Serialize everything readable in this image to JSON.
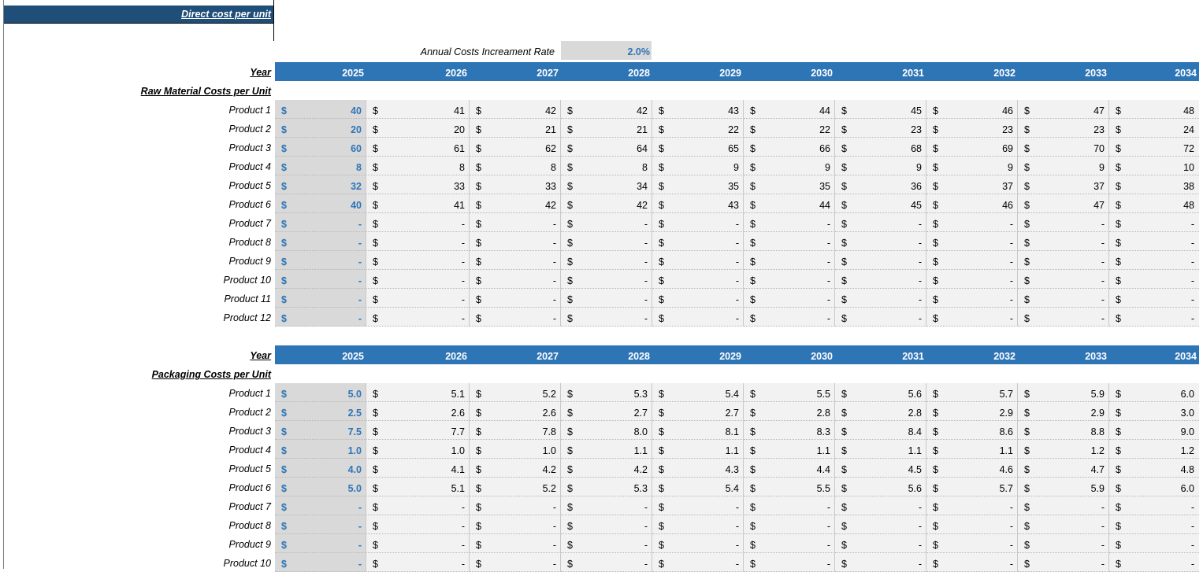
{
  "sheet": {
    "title": "Direct cost per unit",
    "rate_label": "Annual Costs Increament Rate",
    "rate_value": "2.0%"
  },
  "sections": [
    {
      "year_label": "Year",
      "section_title": "Raw Material Costs per Unit",
      "years": [
        "2025",
        "2026",
        "2027",
        "2028",
        "2029",
        "2030",
        "2031",
        "2032",
        "2033",
        "2034"
      ],
      "rows": [
        {
          "label": "Product 1",
          "values": [
            "40",
            "41",
            "42",
            "42",
            "43",
            "44",
            "45",
            "46",
            "47",
            "48"
          ]
        },
        {
          "label": "Product 2",
          "values": [
            "20",
            "20",
            "21",
            "21",
            "22",
            "22",
            "23",
            "23",
            "23",
            "24"
          ]
        },
        {
          "label": "Product 3",
          "values": [
            "60",
            "61",
            "62",
            "64",
            "65",
            "66",
            "68",
            "69",
            "70",
            "72"
          ]
        },
        {
          "label": "Product 4",
          "values": [
            "8",
            "8",
            "8",
            "8",
            "9",
            "9",
            "9",
            "9",
            "9",
            "10"
          ]
        },
        {
          "label": "Product 5",
          "values": [
            "32",
            "33",
            "33",
            "34",
            "35",
            "35",
            "36",
            "37",
            "37",
            "38"
          ]
        },
        {
          "label": "Product 6",
          "values": [
            "40",
            "41",
            "42",
            "42",
            "43",
            "44",
            "45",
            "46",
            "47",
            "48"
          ]
        },
        {
          "label": "Product 7",
          "values": [
            "-",
            "-",
            "-",
            "-",
            "-",
            "-",
            "-",
            "-",
            "-",
            "-"
          ]
        },
        {
          "label": "Product 8",
          "values": [
            "-",
            "-",
            "-",
            "-",
            "-",
            "-",
            "-",
            "-",
            "-",
            "-"
          ]
        },
        {
          "label": "Product 9",
          "values": [
            "-",
            "-",
            "-",
            "-",
            "-",
            "-",
            "-",
            "-",
            "-",
            "-"
          ]
        },
        {
          "label": "Product 10",
          "values": [
            "-",
            "-",
            "-",
            "-",
            "-",
            "-",
            "-",
            "-",
            "-",
            "-"
          ]
        },
        {
          "label": "Product 11",
          "values": [
            "-",
            "-",
            "-",
            "-",
            "-",
            "-",
            "-",
            "-",
            "-",
            "-"
          ]
        },
        {
          "label": "Product 12",
          "values": [
            "-",
            "-",
            "-",
            "-",
            "-",
            "-",
            "-",
            "-",
            "-",
            "-"
          ]
        }
      ]
    },
    {
      "year_label": "Year",
      "section_title": "Packaging Costs per Unit",
      "years": [
        "2025",
        "2026",
        "2027",
        "2028",
        "2029",
        "2030",
        "2031",
        "2032",
        "2033",
        "2034"
      ],
      "rows": [
        {
          "label": "Product 1",
          "values": [
            "5.0",
            "5.1",
            "5.2",
            "5.3",
            "5.4",
            "5.5",
            "5.6",
            "5.7",
            "5.9",
            "6.0"
          ]
        },
        {
          "label": "Product 2",
          "values": [
            "2.5",
            "2.6",
            "2.6",
            "2.7",
            "2.7",
            "2.8",
            "2.8",
            "2.9",
            "2.9",
            "3.0"
          ]
        },
        {
          "label": "Product 3",
          "values": [
            "7.5",
            "7.7",
            "7.8",
            "8.0",
            "8.1",
            "8.3",
            "8.4",
            "8.6",
            "8.8",
            "9.0"
          ]
        },
        {
          "label": "Product 4",
          "values": [
            "1.0",
            "1.0",
            "1.0",
            "1.1",
            "1.1",
            "1.1",
            "1.1",
            "1.1",
            "1.2",
            "1.2"
          ]
        },
        {
          "label": "Product 5",
          "values": [
            "4.0",
            "4.1",
            "4.2",
            "4.2",
            "4.3",
            "4.4",
            "4.5",
            "4.6",
            "4.7",
            "4.8"
          ]
        },
        {
          "label": "Product 6",
          "values": [
            "5.0",
            "5.1",
            "5.2",
            "5.3",
            "5.4",
            "5.5",
            "5.6",
            "5.7",
            "5.9",
            "6.0"
          ]
        },
        {
          "label": "Product 7",
          "values": [
            "-",
            "-",
            "-",
            "-",
            "-",
            "-",
            "-",
            "-",
            "-",
            "-"
          ]
        },
        {
          "label": "Product 8",
          "values": [
            "-",
            "-",
            "-",
            "-",
            "-",
            "-",
            "-",
            "-",
            "-",
            "-"
          ]
        },
        {
          "label": "Product 9",
          "values": [
            "-",
            "-",
            "-",
            "-",
            "-",
            "-",
            "-",
            "-",
            "-",
            "-"
          ]
        },
        {
          "label": "Product 10",
          "values": [
            "-",
            "-",
            "-",
            "-",
            "-",
            "-",
            "-",
            "-",
            "-",
            "-"
          ]
        }
      ]
    }
  ],
  "currency_symbol": "$",
  "colors": {
    "header_blue": "#2e75b6",
    "title_navy": "#1f4e79",
    "input_gray": "#d9d9d9",
    "cell_gray": "#f2f2f2"
  }
}
